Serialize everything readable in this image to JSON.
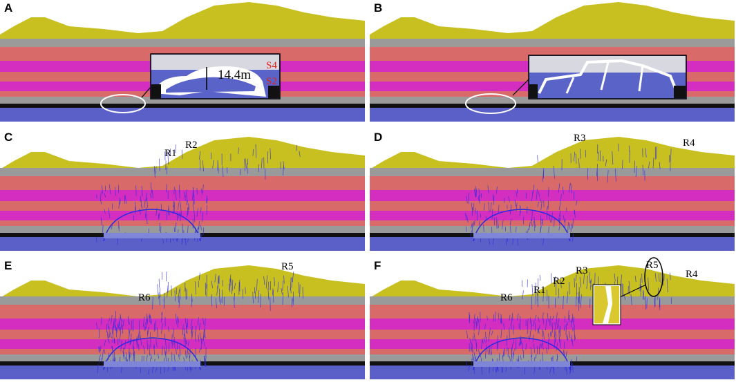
{
  "panels": [
    {
      "label": "A",
      "annotations": [
        "14.4m",
        "S4",
        "S2"
      ]
    },
    {
      "label": "B"
    },
    {
      "label": "C",
      "annotations": [
        "R1",
        "R2"
      ]
    },
    {
      "label": "D",
      "annotations": [
        "R3",
        "R4"
      ]
    },
    {
      "label": "E",
      "annotations": [
        "R6",
        "R5"
      ]
    },
    {
      "label": "F",
      "annotations": [
        "R6",
        "R1",
        "R2",
        "R3",
        "R5",
        "R4"
      ]
    }
  ]
}
